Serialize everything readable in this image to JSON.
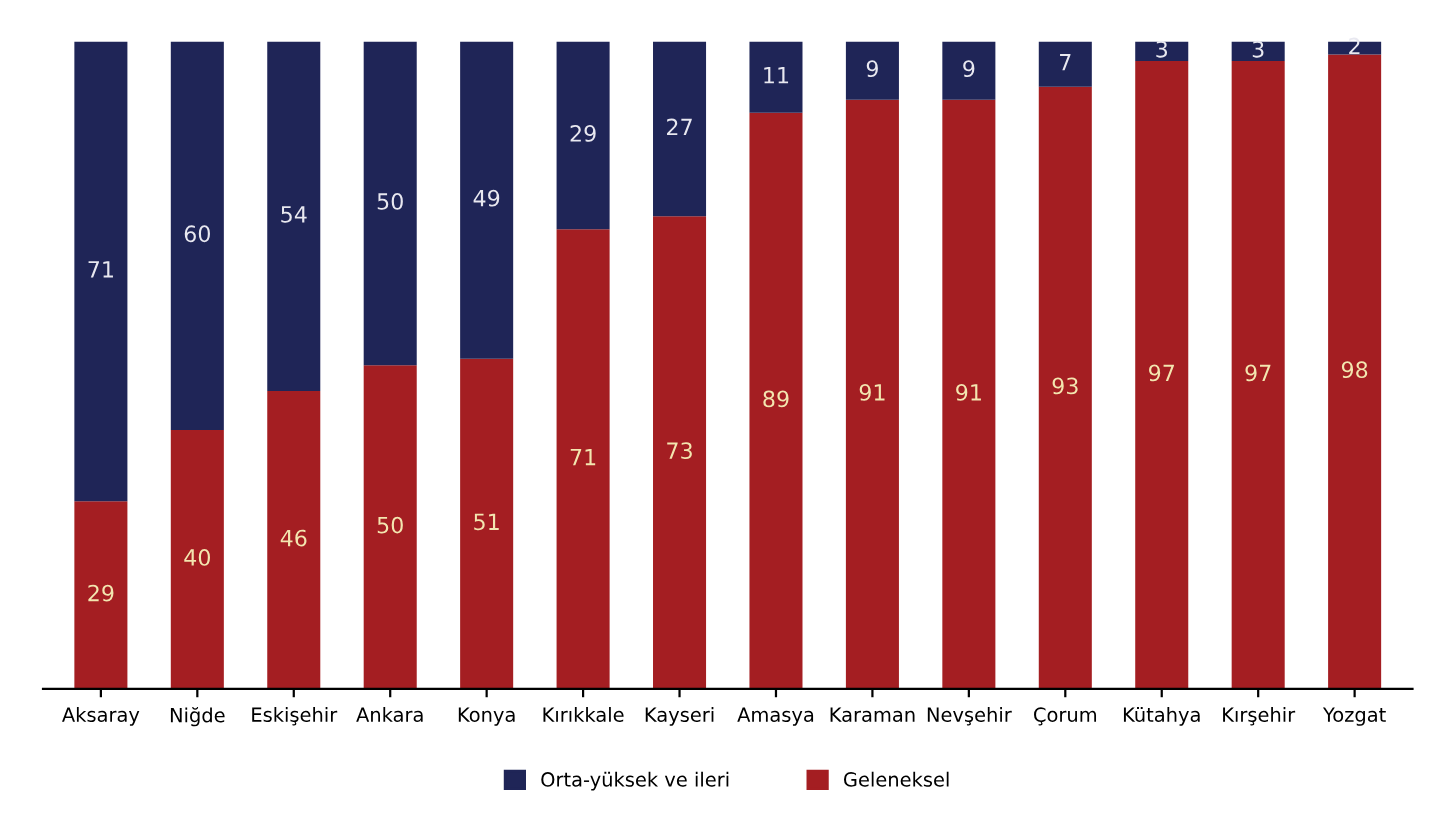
{
  "chart_data": {
    "type": "bar",
    "stacked": true,
    "data_labels": true,
    "legend": "bottom",
    "grid": false,
    "tick_labels": "x",
    "categories": [
      "Aksaray",
      "Niğde",
      "Eskişehir",
      "Ankara",
      "Konya",
      "Kırıkkale",
      "Kayseri",
      "Amasya",
      "Karaman",
      "Nevşehir",
      "Çorum",
      "Kütahya",
      "Kırşehir",
      "Yozgat"
    ],
    "series": [
      {
        "name": "Geleneksel",
        "color": "#a41e22",
        "values": [
          29,
          40,
          46,
          50,
          51,
          71,
          73,
          89,
          91,
          91,
          93,
          97,
          97,
          98
        ]
      },
      {
        "name": "Orta-yüksek ve ileri",
        "color": "#1f2557",
        "values": [
          71,
          60,
          54,
          50,
          49,
          29,
          27,
          11,
          9,
          9,
          7,
          3,
          3,
          2
        ]
      }
    ]
  }
}
